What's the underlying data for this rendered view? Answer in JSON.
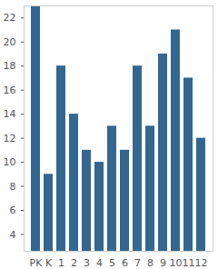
{
  "chart_data": {
    "type": "bar",
    "categories": [
      "PK",
      "K",
      "1",
      "2",
      "3",
      "4",
      "5",
      "6",
      "7",
      "8",
      "9",
      "10",
      "11",
      "12"
    ],
    "values": [
      23,
      9,
      18,
      14,
      11,
      10,
      13,
      11,
      18,
      13,
      19,
      21,
      17,
      12
    ],
    "color": "#34678f",
    "ylim": [
      2.6,
      23
    ],
    "yticks": [
      4,
      6,
      8,
      10,
      12,
      14,
      16,
      18,
      20,
      22
    ],
    "grid": false
  }
}
